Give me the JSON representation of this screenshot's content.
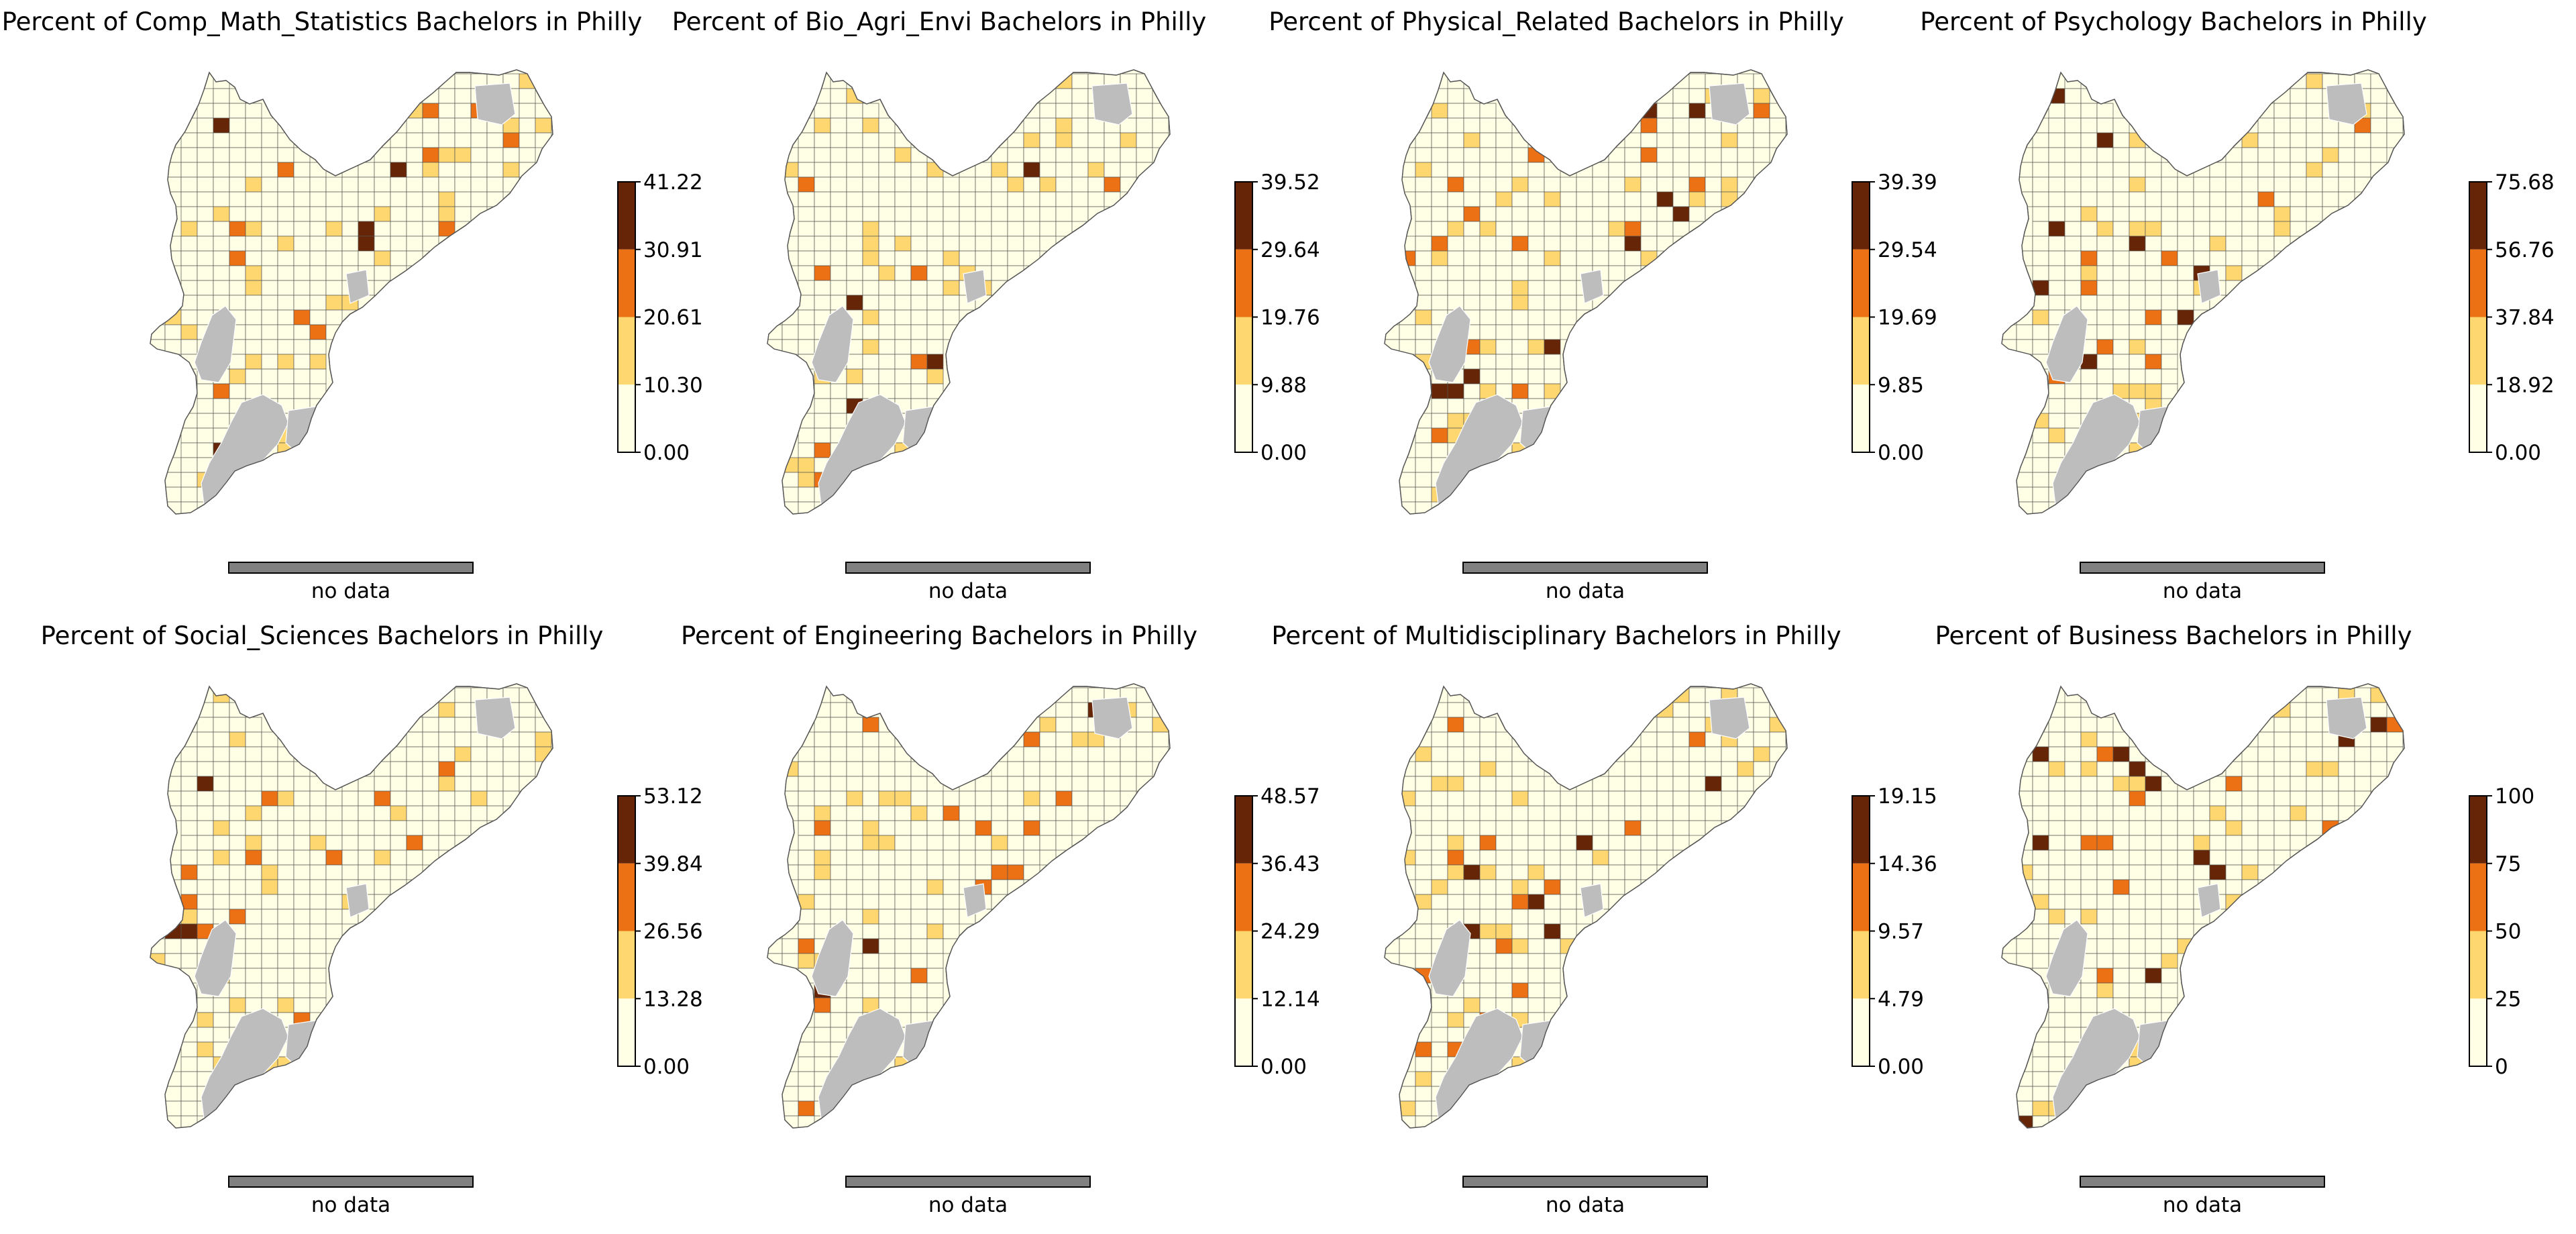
{
  "figure": {
    "panels": [
      {
        "title": "Percent of Comp_Math_Statistics Bachelors in Philly",
        "ticks": [
          "41.22",
          "30.91",
          "20.61",
          "10.30",
          "0.00"
        ],
        "no_data_label": "no data"
      },
      {
        "title": "Percent of Bio_Agri_Envi Bachelors in Philly",
        "ticks": [
          "39.52",
          "29.64",
          "19.76",
          "9.88",
          "0.00"
        ],
        "no_data_label": "no data"
      },
      {
        "title": "Percent of Physical_Related Bachelors in Philly",
        "ticks": [
          "39.39",
          "29.54",
          "19.69",
          "9.85",
          "0.00"
        ],
        "no_data_label": "no data"
      },
      {
        "title": "Percent of Psychology Bachelors in Philly",
        "ticks": [
          "75.68",
          "56.76",
          "37.84",
          "18.92",
          "0.00"
        ],
        "no_data_label": "no data"
      },
      {
        "title": "Percent of Social_Sciences Bachelors in Philly",
        "ticks": [
          "53.12",
          "39.84",
          "26.56",
          "13.28",
          "0.00"
        ],
        "no_data_label": "no data"
      },
      {
        "title": "Percent of Engineering Bachelors in Philly",
        "ticks": [
          "48.57",
          "36.43",
          "24.29",
          "12.14",
          "0.00"
        ],
        "no_data_label": "no data"
      },
      {
        "title": "Percent of Multidisciplinary Bachelors in Philly",
        "ticks": [
          "19.15",
          "14.36",
          "9.57",
          "4.79",
          "0.00"
        ],
        "no_data_label": "no data"
      },
      {
        "title": "Percent of Business Bachelors in Philly",
        "ticks": [
          "100",
          "75",
          "50",
          "25",
          "0"
        ],
        "no_data_label": "no data"
      }
    ],
    "colors": {
      "class_colors": [
        "#ffffe5",
        "#fed771",
        "#ec7014",
        "#662506"
      ],
      "no_data_color": "#bdbdbd",
      "no_data_box": "#808080",
      "tract_edge": "#555555"
    }
  }
}
